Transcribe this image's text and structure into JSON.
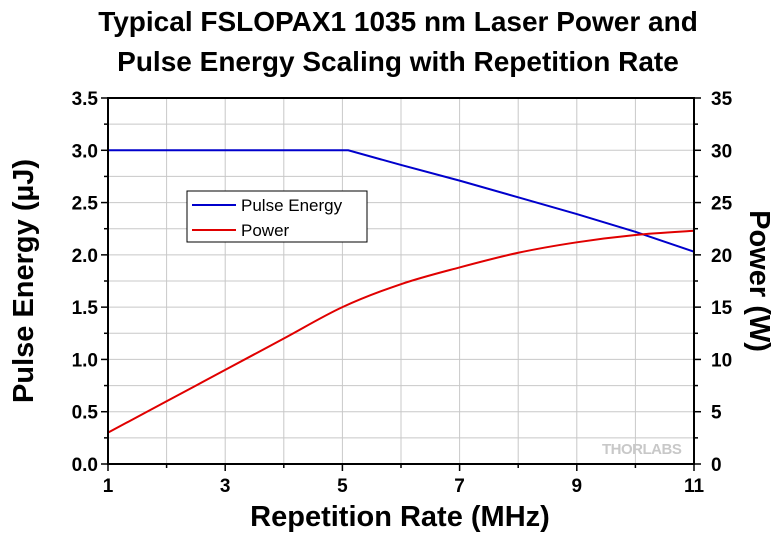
{
  "chart_data": {
    "type": "line",
    "title_line1": "Typical FSLOPAX1 1035 nm Laser Power and",
    "title_line2": "Pulse Energy Scaling with Repetition Rate",
    "xlabel": "Repetition Rate (MHz)",
    "ylabel_left": "Pulse Energy (µJ)",
    "ylabel_right": "Power (W)",
    "xlim": [
      1,
      11
    ],
    "ylim_left": [
      0,
      3.5
    ],
    "ylim_right": [
      0,
      35
    ],
    "x_ticks": [
      "1",
      "3",
      "5",
      "7",
      "9",
      "11"
    ],
    "y_left_ticks": [
      "0.0",
      "0.5",
      "1.0",
      "1.5",
      "2.0",
      "2.5",
      "3.0",
      "3.5"
    ],
    "y_right_ticks": [
      "0",
      "5",
      "10",
      "15",
      "20",
      "25",
      "30",
      "35"
    ],
    "grid": true,
    "legend_position": "upper-left",
    "watermark_text": "THORLABS",
    "series": [
      {
        "name": "Pulse Energy",
        "axis": "left",
        "color": "#0000cc",
        "x": [
          1,
          5,
          5.1,
          6,
          7,
          8,
          9,
          10,
          11
        ],
        "y": [
          3.0,
          3.0,
          3.0,
          2.86,
          2.71,
          2.55,
          2.39,
          2.22,
          2.03
        ]
      },
      {
        "name": "Power",
        "axis": "right",
        "color": "#e00000",
        "x": [
          1,
          2,
          3,
          4,
          5,
          6,
          7,
          8,
          9,
          10,
          11
        ],
        "y": [
          3.0,
          6.0,
          9.0,
          12.0,
          15.0,
          17.2,
          18.8,
          20.2,
          21.2,
          21.9,
          22.3
        ]
      }
    ]
  }
}
